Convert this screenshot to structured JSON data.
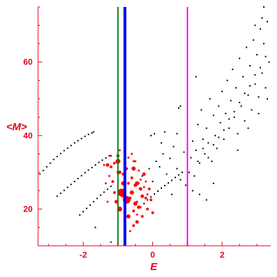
{
  "chart_data": {
    "type": "scatter",
    "title": "",
    "xlabel": "E",
    "ylabel": "<M>",
    "xlim": [
      -3.3,
      3.4
    ],
    "ylim": [
      10,
      75
    ],
    "grid": false,
    "x_ticks": [
      -2,
      0,
      2
    ],
    "y_ticks": [
      20,
      40,
      60
    ],
    "x_tick_labels": [
      "-2",
      "0",
      "2"
    ],
    "y_tick_labels": [
      "20",
      "40",
      "60"
    ],
    "colors": {
      "axis": "#e0001b",
      "black_points": "#000000",
      "red_points": "#ff0000",
      "green_line": "#008000",
      "blue_line": "#0000ff",
      "magenta_line": "#ff00ff"
    },
    "vertical_lines": [
      {
        "x": -1.0,
        "color": "#008000",
        "width": 2
      },
      {
        "x": -0.8,
        "color": "#0000ff",
        "width": 4
      },
      {
        "x": 1.0,
        "color": "#ff00ff",
        "width": 2
      }
    ],
    "series": [
      {
        "color": "#000000",
        "points": [
          [
            -3.25,
            29.5
          ],
          [
            -3.15,
            30.5
          ],
          [
            -3.05,
            31.5
          ],
          [
            -2.95,
            32.5
          ],
          [
            -2.85,
            33.5
          ],
          [
            -2.75,
            34.3
          ],
          [
            -2.65,
            35.1
          ],
          [
            -2.55,
            35.9
          ],
          [
            -2.45,
            36.6
          ],
          [
            -2.35,
            37.3
          ],
          [
            -2.25,
            38.0
          ],
          [
            -2.15,
            38.6
          ],
          [
            -2.05,
            39.2
          ],
          [
            -1.95,
            39.8
          ],
          [
            -1.85,
            40.3
          ],
          [
            -1.75,
            40.7
          ],
          [
            -1.7,
            41.0
          ],
          [
            -2.75,
            23.5
          ],
          [
            -2.65,
            24.3
          ],
          [
            -2.55,
            25.1
          ],
          [
            -2.45,
            25.9
          ],
          [
            -2.35,
            26.7
          ],
          [
            -2.25,
            27.5
          ],
          [
            -2.15,
            28.3
          ],
          [
            -2.05,
            29.1
          ],
          [
            -1.95,
            29.9
          ],
          [
            -1.85,
            30.6
          ],
          [
            -1.75,
            31.3
          ],
          [
            -1.65,
            32.0
          ],
          [
            -1.55,
            32.7
          ],
          [
            -1.45,
            33.3
          ],
          [
            -1.35,
            33.9
          ],
          [
            -1.25,
            34.5
          ],
          [
            -2.1,
            18.4
          ],
          [
            -2.0,
            19.3
          ],
          [
            -1.9,
            20.2
          ],
          [
            -1.8,
            21.1
          ],
          [
            -1.7,
            22.0
          ],
          [
            -1.6,
            22.9
          ],
          [
            -1.5,
            23.8
          ],
          [
            -1.4,
            24.6
          ],
          [
            -1.3,
            25.4
          ],
          [
            -1.2,
            26.2
          ],
          [
            -1.65,
            15.0
          ],
          [
            -1.2,
            11.0
          ],
          [
            -0.25,
            21.5
          ],
          [
            -0.15,
            22.5
          ],
          [
            -0.05,
            23.3
          ],
          [
            0.05,
            24.1
          ],
          [
            0.15,
            24.9
          ],
          [
            0.25,
            25.7
          ],
          [
            0.35,
            26.4
          ],
          [
            0.45,
            27.1
          ],
          [
            0.55,
            27.8
          ],
          [
            0.65,
            28.6
          ],
          [
            0.75,
            29.3
          ],
          [
            0.85,
            30.0
          ],
          [
            -0.4,
            27.0
          ],
          [
            -0.3,
            29.0
          ],
          [
            0.1,
            33.0
          ],
          [
            0.2,
            31.5
          ],
          [
            0.3,
            35.0
          ],
          [
            0.4,
            29.5
          ],
          [
            0.5,
            33.8
          ],
          [
            0.6,
            37.0
          ],
          [
            0.7,
            31.0
          ],
          [
            0.8,
            28.0
          ],
          [
            0.9,
            35.5
          ],
          [
            0.95,
            26.5
          ],
          [
            0.0,
            27.5
          ],
          [
            -0.1,
            31.0
          ],
          [
            0.25,
            38.0
          ],
          [
            0.55,
            24.0
          ],
          [
            -0.05,
            40.0
          ],
          [
            0.05,
            40.5
          ],
          [
            0.35,
            41.0
          ],
          [
            0.7,
            40.5
          ],
          [
            1.05,
            30.0
          ],
          [
            1.1,
            34.0
          ],
          [
            1.15,
            38.5
          ],
          [
            1.2,
            29.0
          ],
          [
            1.25,
            36.0
          ],
          [
            1.3,
            43.0
          ],
          [
            1.35,
            32.5
          ],
          [
            1.4,
            47.0
          ],
          [
            1.45,
            39.0
          ],
          [
            1.5,
            35.0
          ],
          [
            1.55,
            42.0
          ],
          [
            1.6,
            38.0
          ],
          [
            1.65,
            50.0
          ],
          [
            1.7,
            33.0
          ],
          [
            1.75,
            45.5
          ],
          [
            1.8,
            40.0
          ],
          [
            1.85,
            36.5
          ],
          [
            1.9,
            48.0
          ],
          [
            1.95,
            43.5
          ],
          [
            2.0,
            52.0
          ],
          [
            2.05,
            39.0
          ],
          [
            2.1,
            46.0
          ],
          [
            2.15,
            55.0
          ],
          [
            2.2,
            42.0
          ],
          [
            2.25,
            49.5
          ],
          [
            2.3,
            58.0
          ],
          [
            2.35,
            45.0
          ],
          [
            2.4,
            53.0
          ],
          [
            2.45,
            40.5
          ],
          [
            2.5,
            61.0
          ],
          [
            2.55,
            48.0
          ],
          [
            2.6,
            56.0
          ],
          [
            2.65,
            44.0
          ],
          [
            2.7,
            64.0
          ],
          [
            2.75,
            51.0
          ],
          [
            2.8,
            59.0
          ],
          [
            2.85,
            47.0
          ],
          [
            2.9,
            66.0
          ],
          [
            2.95,
            54.0
          ],
          [
            3.0,
            62.0
          ],
          [
            3.05,
            50.5
          ],
          [
            3.1,
            69.0
          ],
          [
            3.15,
            57.0
          ],
          [
            3.2,
            65.0
          ],
          [
            3.25,
            53.0
          ],
          [
            3.3,
            71.0
          ],
          [
            3.35,
            60.0
          ],
          [
            1.3,
            33.0
          ],
          [
            1.45,
            36.5
          ],
          [
            1.6,
            34.0
          ],
          [
            1.75,
            37.5
          ],
          [
            1.9,
            39.5
          ],
          [
            2.05,
            41.5
          ],
          [
            2.2,
            44.5
          ],
          [
            2.35,
            46.5
          ],
          [
            2.5,
            49.0
          ],
          [
            2.65,
            51.5
          ],
          [
            2.8,
            53.5
          ],
          [
            2.95,
            56.5
          ],
          [
            3.1,
            58.5
          ],
          [
            3.25,
            61.5
          ],
          [
            1.15,
            25.0
          ],
          [
            1.35,
            24.0
          ],
          [
            1.55,
            22.5
          ],
          [
            1.75,
            27.0
          ],
          [
            2.45,
            36.0
          ],
          [
            2.75,
            42.0
          ],
          [
            3.05,
            46.0
          ],
          [
            3.3,
            50.0
          ],
          [
            0.75,
            47.5
          ],
          [
            0.8,
            48.0
          ],
          [
            1.25,
            56.0
          ],
          [
            3.15,
            72.0
          ],
          [
            3.2,
            75.0
          ],
          [
            2.95,
            70.0
          ]
        ]
      },
      {
        "color": "#ff0000",
        "points": [
          [
            -1.0,
            33.0,
            3.5
          ],
          [
            -0.95,
            30.0,
            2.5
          ],
          [
            -0.9,
            24.5,
            5.5
          ],
          [
            -0.85,
            24.0,
            4.5
          ],
          [
            -0.75,
            22.5,
            5.5
          ],
          [
            -0.7,
            18.0,
            3
          ],
          [
            -0.95,
            20.0,
            3.5
          ],
          [
            -0.85,
            27.0,
            3
          ],
          [
            -0.6,
            24.5,
            3
          ],
          [
            -0.55,
            31.0,
            3
          ],
          [
            -0.5,
            26.5,
            2.5
          ],
          [
            -0.5,
            21.5,
            3
          ],
          [
            -0.45,
            27.0,
            3
          ],
          [
            -0.4,
            20.5,
            2.5
          ],
          [
            -0.35,
            25.5,
            2.5
          ],
          [
            -0.3,
            23.5,
            2.5
          ],
          [
            -0.25,
            29.5,
            2.5
          ],
          [
            -0.3,
            18.0,
            2
          ],
          [
            -0.45,
            16.5,
            2.5
          ],
          [
            -0.55,
            15.5,
            2
          ],
          [
            -0.65,
            14.0,
            1.5
          ],
          [
            -0.2,
            23.0,
            2
          ],
          [
            -0.15,
            20.0,
            2
          ],
          [
            -0.1,
            25.5,
            2
          ],
          [
            -0.05,
            22.5,
            2
          ],
          [
            0.0,
            19.0,
            2
          ],
          [
            -1.3,
            32.0,
            2.5
          ],
          [
            -1.2,
            31.5,
            2
          ],
          [
            -1.1,
            32.5,
            2
          ],
          [
            -1.25,
            29.0,
            1.5
          ],
          [
            -1.15,
            27.5,
            2
          ],
          [
            -1.1,
            24.5,
            2
          ],
          [
            -1.05,
            22.0,
            2.5
          ],
          [
            -1.0,
            30.0,
            2
          ],
          [
            -1.2,
            34.5,
            1.5
          ],
          [
            -1.4,
            32.0,
            1.5
          ],
          [
            -0.85,
            29.5,
            2
          ],
          [
            -0.8,
            17.5,
            2
          ],
          [
            -0.75,
            31.0,
            2
          ],
          [
            -0.7,
            27.0,
            2
          ],
          [
            -0.65,
            23.0,
            2
          ],
          [
            -0.6,
            28.5,
            2
          ],
          [
            -0.55,
            19.5,
            2
          ],
          [
            -0.5,
            33.0,
            1.5
          ],
          [
            -0.45,
            22.0,
            1.5
          ],
          [
            -0.4,
            30.5,
            1.5
          ],
          [
            -0.35,
            28.0,
            1.5
          ],
          [
            -0.25,
            26.0,
            1.5
          ],
          [
            -0.2,
            27.5,
            1.5
          ],
          [
            -0.15,
            24.0,
            1.5
          ],
          [
            -1.35,
            27.0,
            1.5
          ],
          [
            -1.3,
            22.0,
            1.5
          ],
          [
            -0.95,
            36.0,
            1.5
          ],
          [
            -0.6,
            35.0,
            1.5
          ],
          [
            -0.55,
            33.0,
            1.5
          ],
          [
            -0.7,
            34.0,
            1.5
          ],
          [
            -0.45,
            18.5,
            1.5
          ],
          [
            -0.35,
            20.5,
            1.5
          ]
        ]
      },
      {
        "color": "#808000",
        "points": [
          [
            -1.0,
            34.5,
            2.5
          ]
        ]
      }
    ]
  }
}
